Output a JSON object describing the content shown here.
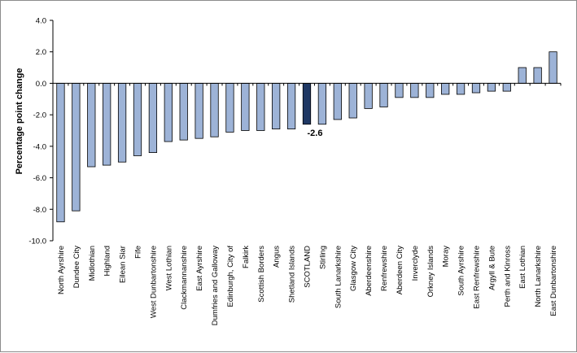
{
  "chart_data": {
    "type": "bar",
    "xlabel": "",
    "ylabel": "Percentage point change",
    "ylim": [
      -10,
      4
    ],
    "ytick_step": 2,
    "grid": false,
    "categories": [
      "North Ayrshire",
      "Dundee City",
      "Midlothian",
      "Highland",
      "Eilean Siar",
      "Fife",
      "West Dunbartonshire",
      "West Lothian",
      "Clackmannanshire",
      "East Ayrshire",
      "Dumfries and Galloway",
      "Edinburgh, City of",
      "Falkirk",
      "Scottish Borders",
      "Angus",
      "Shetland Islands",
      "SCOTLAND",
      "Stirling",
      "South Lanarkshire",
      "Glasgow City",
      "Aberdeenshire",
      "Renfrewshire",
      "Aberdeen City",
      "Inverclyde",
      "Orkney Islands",
      "Moray",
      "South Ayrshire",
      "East Renfrewshire",
      "Argyll & Bute",
      "Perth and Kinross",
      "East Lothian",
      "North Lanarkshire",
      "East Dunbartonshire"
    ],
    "values": [
      -8.8,
      -8.1,
      -5.3,
      -5.2,
      -5.0,
      -4.6,
      -4.4,
      -3.7,
      -3.6,
      -3.5,
      -3.4,
      -3.1,
      -3.0,
      -3.0,
      -2.9,
      -2.9,
      -2.6,
      -2.6,
      -2.3,
      -2.2,
      -1.6,
      -1.5,
      -0.9,
      -0.9,
      -0.9,
      -0.7,
      -0.7,
      -0.6,
      -0.5,
      -0.5,
      1.0,
      1.0,
      2.0
    ],
    "highlight_category": "SCOTLAND",
    "data_labels": [
      {
        "category": "SCOTLAND",
        "text": "-2.6"
      }
    ],
    "colors": {
      "bar_fill": "#9DB3D7",
      "bar_highlight": "#1F3864",
      "bar_stroke": "#000000",
      "axis": "#000000"
    }
  }
}
